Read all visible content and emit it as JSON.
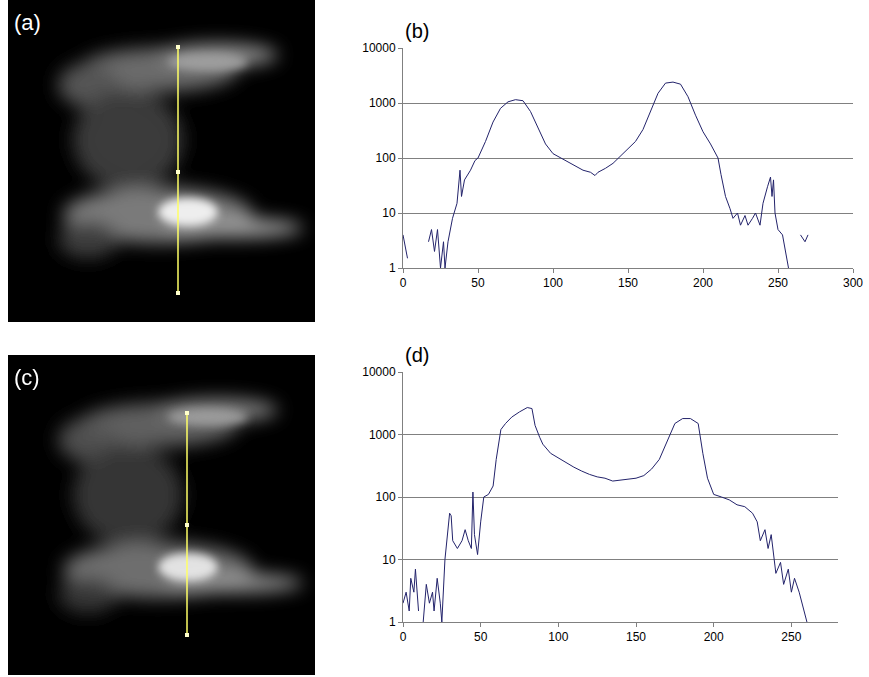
{
  "chart_data": [
    {
      "type": "image",
      "title": "(a)"
    },
    {
      "type": "line",
      "title": "(b)",
      "x": [
        0,
        3,
        5,
        17,
        19,
        21,
        23,
        25,
        27,
        28,
        30,
        33,
        36,
        38,
        39,
        41,
        43,
        45,
        48,
        50,
        55,
        60,
        65,
        70,
        75,
        80,
        85,
        90,
        95,
        100,
        105,
        110,
        115,
        120,
        125,
        128,
        130,
        135,
        140,
        145,
        150,
        155,
        160,
        165,
        170,
        175,
        180,
        185,
        190,
        195,
        200,
        205,
        210,
        212,
        215,
        218,
        220,
        223,
        225,
        228,
        230,
        233,
        235,
        238,
        240,
        243,
        245,
        246,
        247,
        248,
        250,
        253,
        255,
        257,
        260,
        265,
        268,
        270
      ],
      "values": [
        4,
        1.5,
        null,
        3,
        5,
        2,
        5,
        1,
        3,
        1,
        3,
        8,
        15,
        60,
        20,
        40,
        50,
        60,
        90,
        100,
        200,
        450,
        800,
        1050,
        1150,
        1100,
        700,
        350,
        180,
        120,
        100,
        85,
        70,
        60,
        55,
        48,
        55,
        65,
        80,
        110,
        150,
        200,
        330,
        700,
        1500,
        2300,
        2400,
        2200,
        1300,
        600,
        300,
        180,
        100,
        50,
        20,
        12,
        8,
        10,
        6,
        9,
        6,
        8,
        10,
        6,
        15,
        30,
        45,
        20,
        40,
        10,
        5,
        4,
        2,
        1,
        null,
        4,
        3,
        4
      ],
      "color": "#23236b",
      "xlim": [
        0,
        300
      ],
      "xticks": [
        0,
        50,
        100,
        150,
        200,
        250,
        300
      ],
      "ylim": [
        1,
        10000
      ],
      "yticks": [
        1,
        10,
        100,
        1000,
        10000
      ],
      "log": "y",
      "grid": true
    },
    {
      "type": "image",
      "title": "(c)"
    },
    {
      "type": "line",
      "title": "(d)",
      "x": [
        0,
        2,
        4,
        5,
        7,
        8,
        10,
        11,
        13,
        15,
        17,
        19,
        20,
        22,
        24,
        25,
        27,
        29,
        30,
        31,
        32,
        35,
        38,
        40,
        42,
        44,
        45,
        46,
        48,
        50,
        52,
        55,
        58,
        60,
        63,
        66,
        70,
        75,
        80,
        83,
        85,
        88,
        90,
        95,
        100,
        105,
        110,
        115,
        120,
        125,
        130,
        135,
        140,
        145,
        150,
        155,
        160,
        165,
        170,
        175,
        180,
        185,
        190,
        193,
        196,
        200,
        205,
        210,
        215,
        220,
        225,
        228,
        230,
        233,
        235,
        237,
        240,
        243,
        245,
        248,
        250,
        252,
        255,
        258,
        260
      ],
      "values": [
        2,
        3,
        1.5,
        5,
        3,
        7,
        1.5,
        null,
        1,
        4,
        2,
        3,
        1.5,
        5,
        2,
        1,
        10,
        30,
        55,
        50,
        20,
        15,
        20,
        30,
        20,
        15,
        120,
        25,
        12,
        40,
        100,
        110,
        150,
        400,
        1200,
        1500,
        1900,
        2300,
        2700,
        2600,
        1400,
        900,
        700,
        500,
        420,
        350,
        300,
        260,
        230,
        210,
        200,
        180,
        185,
        190,
        200,
        220,
        280,
        400,
        800,
        1500,
        1800,
        1800,
        1500,
        500,
        200,
        110,
        100,
        90,
        75,
        70,
        55,
        40,
        20,
        30,
        15,
        25,
        6,
        9,
        4,
        7,
        3,
        5,
        3,
        1.5,
        1
      ],
      "color": "#23236b",
      "xlim": [
        0,
        280
      ],
      "xticks": [
        0,
        50,
        100,
        150,
        200,
        250
      ],
      "ylim": [
        1,
        10000
      ],
      "yticks": [
        1,
        10,
        100,
        1000,
        10000
      ],
      "log": "y",
      "grid": true
    }
  ]
}
